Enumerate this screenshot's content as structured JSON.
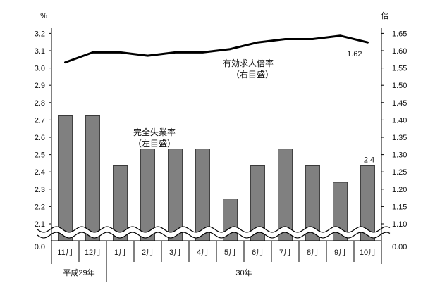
{
  "chart_data": {
    "type": "bar+line",
    "left_unit": "%",
    "right_unit": "倍",
    "categories": [
      "11月",
      "12月",
      "1月",
      "2月",
      "3月",
      "4月",
      "5月",
      "6月",
      "7月",
      "8月",
      "9月",
      "10月"
    ],
    "year_groups": [
      {
        "label": "平成29年",
        "from": 0,
        "to": 1
      },
      {
        "label": "30年",
        "from": 2,
        "to": 11
      }
    ],
    "series": [
      {
        "name": "完全失業率",
        "name_sub": "（左目盛）",
        "axis": "left",
        "kind": "bar",
        "values": [
          2.7,
          2.7,
          2.4,
          2.5,
          2.5,
          2.5,
          2.2,
          2.4,
          2.5,
          2.4,
          2.3,
          2.4
        ],
        "last_label": "2.4"
      },
      {
        "name": "有効求人倍率",
        "name_sub": "（右目盛）",
        "axis": "right",
        "kind": "line",
        "values": [
          1.56,
          1.59,
          1.59,
          1.58,
          1.59,
          1.59,
          1.6,
          1.62,
          1.63,
          1.63,
          1.64,
          1.62
        ],
        "last_label": "1.62"
      }
    ],
    "left_ticks": [
      "0.0",
      "2.1",
      "2.2",
      "2.3",
      "2.4",
      "2.5",
      "2.6",
      "2.7",
      "2.8",
      "2.9",
      "3.0",
      "3.1",
      "3.2"
    ],
    "right_ticks": [
      "0.00",
      "1.10",
      "1.15",
      "1.20",
      "1.25",
      "1.30",
      "1.35",
      "1.40",
      "1.45",
      "1.50",
      "1.55",
      "1.60",
      "1.65"
    ],
    "left_range": [
      2.0,
      3.2
    ],
    "right_range": [
      1.05,
      1.65
    ],
    "axis_break": true,
    "grid": false
  }
}
